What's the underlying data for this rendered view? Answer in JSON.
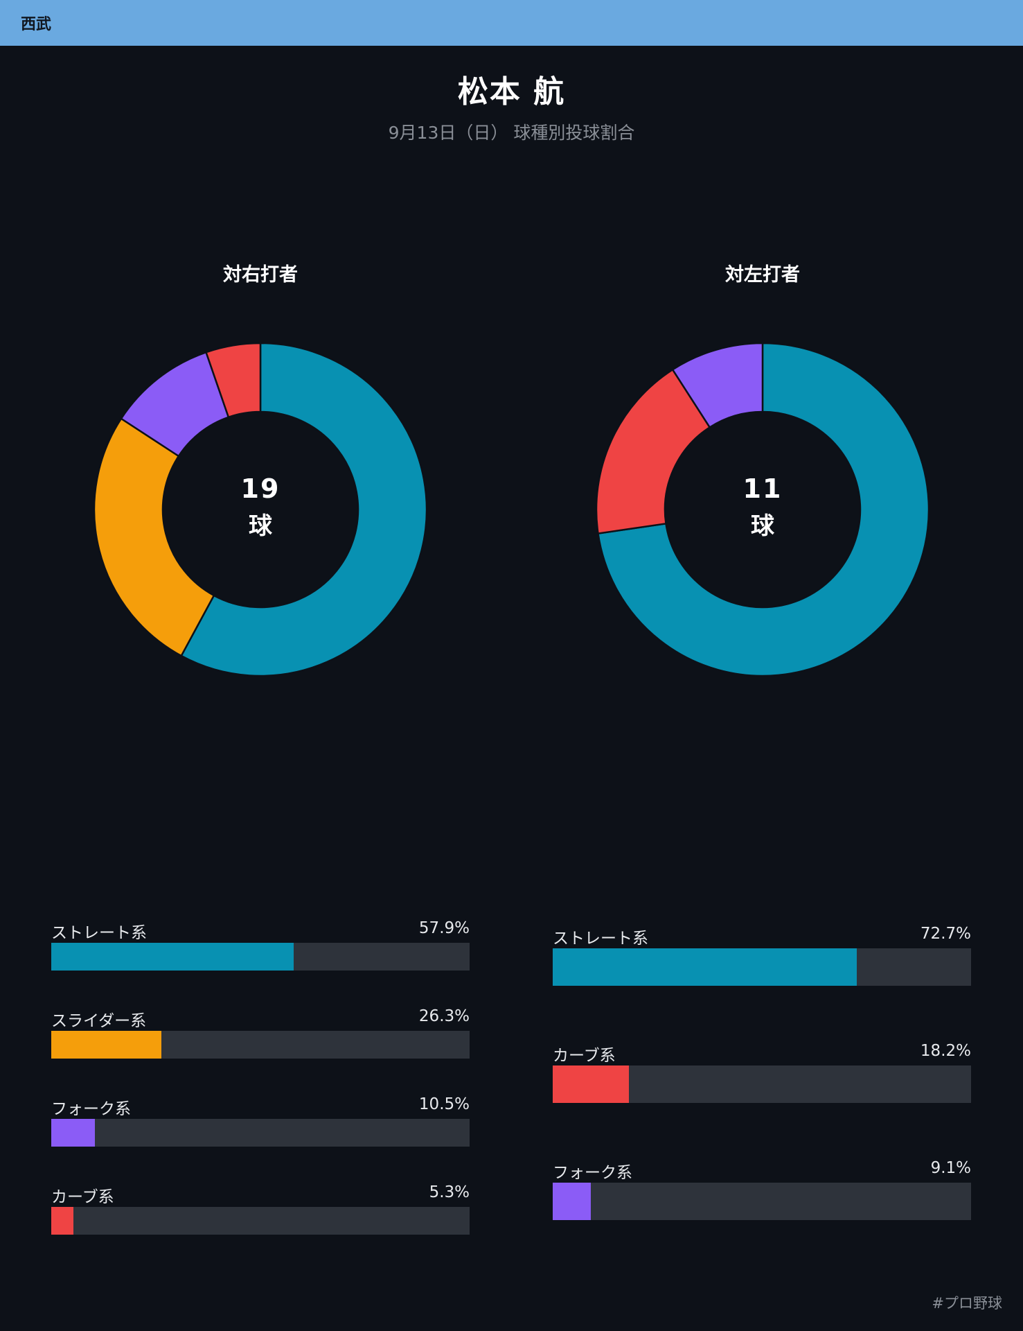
{
  "team": "西武",
  "player_name": "松本 航",
  "subtitle": "9月13日（日） 球種別投球割合",
  "hashtag": "#プロ野球",
  "colors": {
    "straight": "#0891b2",
    "slider": "#f59e0b",
    "fork": "#8b5cf6",
    "curve": "#ef4444",
    "track": "#2e333b",
    "background": "#0d1118",
    "team_bar": "#6aa9e0"
  },
  "chart_data": [
    {
      "type": "pie",
      "title": "対右打者",
      "total": "19",
      "unit": "球",
      "categories": [
        "ストレート系",
        "スライダー系",
        "フォーク系",
        "カーブ系"
      ],
      "values": [
        57.9,
        26.3,
        10.5,
        5.3
      ],
      "labels": [
        "57.9%",
        "26.3%",
        "10.5%",
        "5.3%"
      ],
      "colors": [
        "#0891b2",
        "#f59e0b",
        "#8b5cf6",
        "#ef4444"
      ]
    },
    {
      "type": "pie",
      "title": "対左打者",
      "total": "11",
      "unit": "球",
      "categories": [
        "ストレート系",
        "カーブ系",
        "フォーク系"
      ],
      "values": [
        72.7,
        18.2,
        9.1
      ],
      "labels": [
        "72.7%",
        "18.2%",
        "9.1%"
      ],
      "colors": [
        "#0891b2",
        "#ef4444",
        "#8b5cf6"
      ]
    }
  ]
}
